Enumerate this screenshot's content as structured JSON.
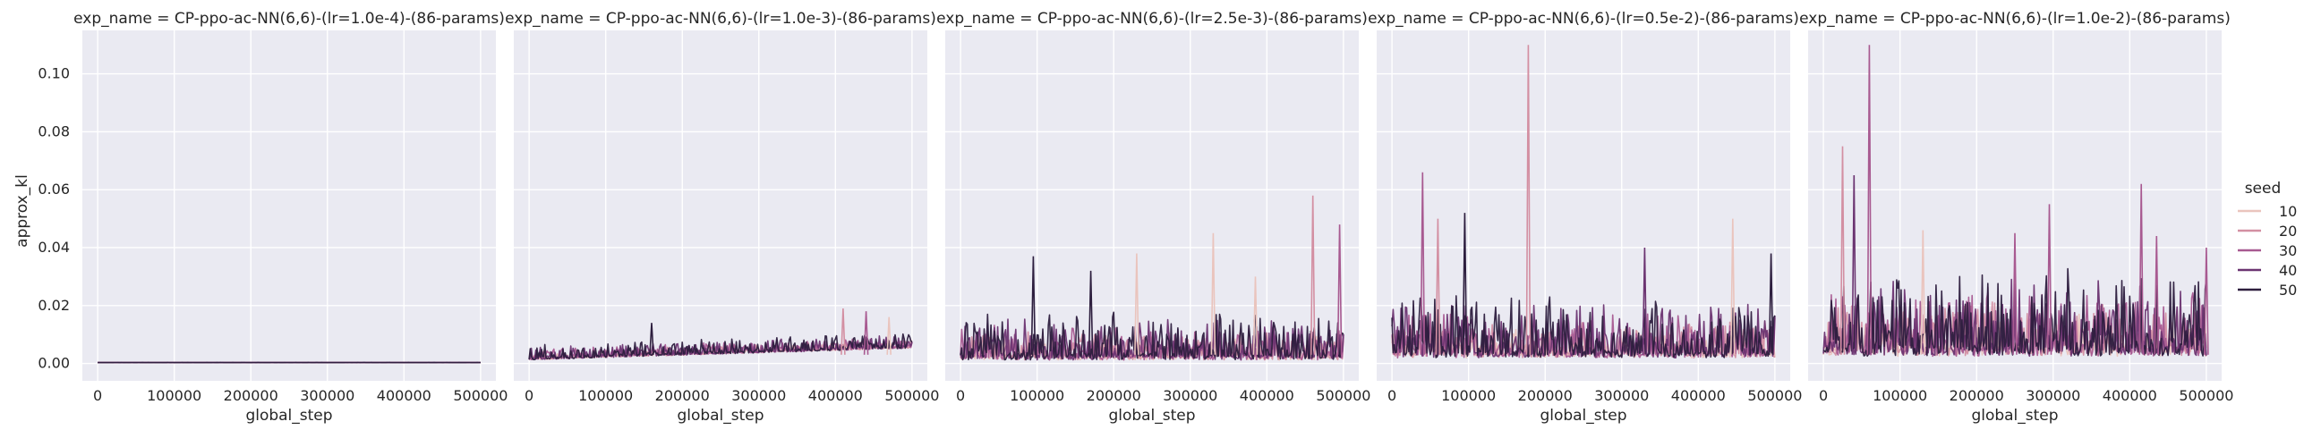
{
  "chart_data": {
    "type": "line",
    "figure_kind": "faceted line plot (5 panels, shared y axis)",
    "xlabel": "global_step",
    "ylabel": "approx_kl",
    "xlim": [
      -20000,
      520000
    ],
    "ylim": [
      -0.006,
      0.115
    ],
    "x_ticks": [
      0,
      100000,
      200000,
      300000,
      400000,
      500000
    ],
    "x_tick_labels": [
      "0",
      "100000",
      "200000",
      "300000",
      "400000",
      "500000"
    ],
    "y_ticks": [
      0.0,
      0.02,
      0.04,
      0.06,
      0.08,
      0.1
    ],
    "y_tick_labels": [
      "0.00",
      "0.02",
      "0.04",
      "0.06",
      "0.08",
      "0.10"
    ],
    "grid": true,
    "legend": {
      "title": "seed",
      "placement": "right",
      "entries": [
        {
          "label": "10",
          "color": "#eac4bd"
        },
        {
          "label": "20",
          "color": "#d38fa2"
        },
        {
          "label": "30",
          "color": "#a85a91"
        },
        {
          "label": "40",
          "color": "#6b3471"
        },
        {
          "label": "50",
          "color": "#2d1e3e"
        }
      ]
    },
    "colors": {
      "panel_background": "#eaeaf2",
      "grid": "#ffffff"
    },
    "panels": [
      {
        "title": "exp_name = CP-ppo-ac-NN(6,6)-(lr=1.0e-4)-(86-params)",
        "x_range": [
          0,
          500000
        ],
        "baseline": 0.0003,
        "noise_scale": 4e-05,
        "trend": 0.0,
        "spikes": []
      },
      {
        "title": "exp_name = CP-ppo-ac-NN(6,6)-(lr=1.0e-3)-(86-params)",
        "x_range": [
          0,
          500000
        ],
        "baseline": 0.0015,
        "noise_scale": 0.0035,
        "trend": 0.004,
        "spikes": [
          {
            "x": 160000,
            "y": 0.014,
            "series": "50"
          },
          {
            "x": 410000,
            "y": 0.019,
            "series": "20"
          },
          {
            "x": 440000,
            "y": 0.018,
            "series": "30"
          },
          {
            "x": 470000,
            "y": 0.016,
            "series": "10"
          }
        ]
      },
      {
        "title": "exp_name = CP-ppo-ac-NN(6,6)-(lr=2.5e-3)-(86-params)",
        "x_range": [
          0,
          500000
        ],
        "baseline": 0.002,
        "noise_scale": 0.011,
        "trend": 0.0,
        "spikes": [
          {
            "x": 95000,
            "y": 0.037,
            "series": "50"
          },
          {
            "x": 170000,
            "y": 0.032,
            "series": "50"
          },
          {
            "x": 230000,
            "y": 0.038,
            "series": "10"
          },
          {
            "x": 330000,
            "y": 0.045,
            "series": "10"
          },
          {
            "x": 385000,
            "y": 0.03,
            "series": "10"
          },
          {
            "x": 460000,
            "y": 0.058,
            "series": "20"
          },
          {
            "x": 495000,
            "y": 0.048,
            "series": "30"
          }
        ]
      },
      {
        "title": "exp_name = CP-ppo-ac-NN(6,6)-(lr=0.5e-2)-(86-params)",
        "x_range": [
          0,
          500000
        ],
        "baseline": 0.003,
        "noise_scale": 0.014,
        "trend": 0.0,
        "spikes": [
          {
            "x": 40000,
            "y": 0.066,
            "series": "30"
          },
          {
            "x": 60000,
            "y": 0.05,
            "series": "20"
          },
          {
            "x": 95000,
            "y": 0.052,
            "series": "50"
          },
          {
            "x": 178000,
            "y": 0.11,
            "series": "20"
          },
          {
            "x": 330000,
            "y": 0.04,
            "series": "40"
          },
          {
            "x": 445000,
            "y": 0.05,
            "series": "10"
          },
          {
            "x": 495000,
            "y": 0.038,
            "series": "50"
          }
        ]
      },
      {
        "title": "exp_name = CP-ppo-ac-NN(6,6)-(lr=1.0e-2)-(86-params)",
        "x_range": [
          0,
          500000
        ],
        "baseline": 0.004,
        "noise_scale": 0.02,
        "trend": 0.0,
        "spikes": [
          {
            "x": 25000,
            "y": 0.075,
            "series": "20"
          },
          {
            "x": 60000,
            "y": 0.11,
            "series": "30"
          },
          {
            "x": 40000,
            "y": 0.065,
            "series": "40"
          },
          {
            "x": 130000,
            "y": 0.046,
            "series": "10"
          },
          {
            "x": 250000,
            "y": 0.045,
            "series": "30"
          },
          {
            "x": 295000,
            "y": 0.055,
            "series": "30"
          },
          {
            "x": 415000,
            "y": 0.062,
            "series": "30"
          },
          {
            "x": 435000,
            "y": 0.044,
            "series": "30"
          },
          {
            "x": 500000,
            "y": 0.04,
            "series": "30"
          }
        ]
      }
    ]
  }
}
